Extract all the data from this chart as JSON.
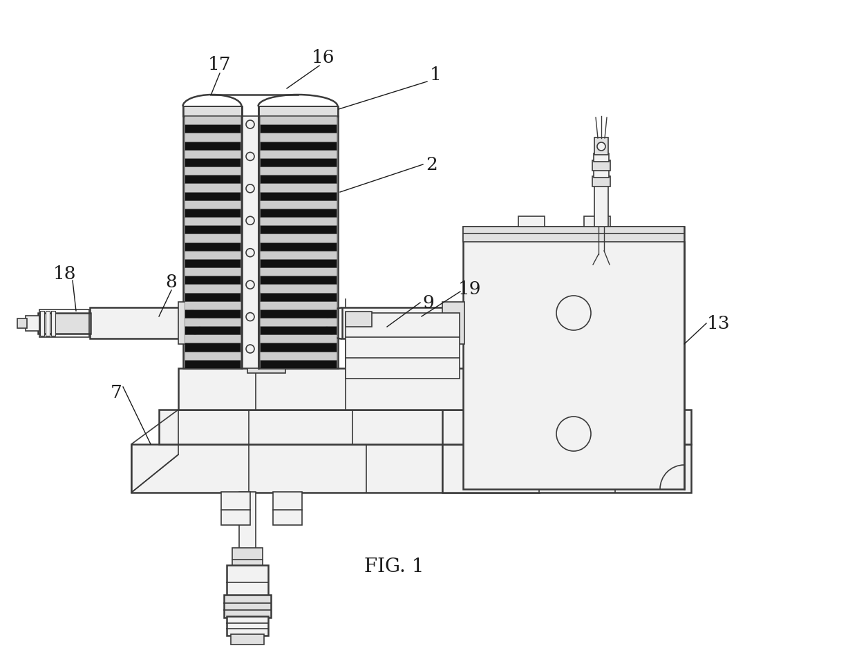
{
  "bg": "#ffffff",
  "lc": "#3a3a3a",
  "lw": 1.2,
  "tlw": 1.8,
  "alc": "#1a1a1a",
  "alw": 1.0,
  "fs": 19,
  "fig_label": "FIG. 1",
  "fig_label_fs": 20,
  "stripe_dark": "#111111",
  "stripe_light": "#cccccc",
  "fill_light": "#f2f2f2",
  "fill_mid": "#e0e0e0",
  "fill_dark": "#c8c8c8"
}
